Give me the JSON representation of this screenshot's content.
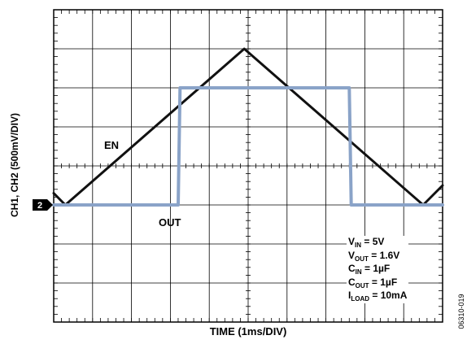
{
  "chart_data": {
    "type": "line",
    "title": "",
    "xlabel": "TIME (1ms/DIV)",
    "ylabel": "CH1, CH2 (500mV/DIV)",
    "figure_id": "06310-019",
    "x_divisions": 10,
    "y_divisions": 8,
    "x_unit": "ms",
    "x_per_div": 1,
    "y_per_div_mV": 500,
    "xlim": [
      0,
      10
    ],
    "ylim": [
      0,
      8
    ],
    "grid": true,
    "ground_marker": {
      "label": "2",
      "level_div": 3.0
    },
    "series": [
      {
        "name": "EN",
        "color": "#111111",
        "x": [
          0,
          0.3,
          4.9,
          9.5,
          10
        ],
        "y": [
          3.3,
          3.0,
          7.0,
          3.0,
          3.5
        ]
      },
      {
        "name": "OUT",
        "color": "#8aa3c8",
        "x": [
          0,
          3.2,
          3.25,
          7.6,
          7.65,
          10
        ],
        "y": [
          3.0,
          3.0,
          6.0,
          6.0,
          3.0,
          3.0
        ]
      }
    ],
    "annotations": {
      "en_label": "EN",
      "out_label": "OUT"
    },
    "conditions": [
      {
        "name": "V",
        "sub": "IN",
        "value": " = 5V"
      },
      {
        "name": "V",
        "sub": "OUT",
        "value": " = 1.6V"
      },
      {
        "name": "C",
        "sub": "IN",
        "value": " = 1µF"
      },
      {
        "name": "C",
        "sub": "OUT",
        "value": " = 1µF"
      },
      {
        "name": "I",
        "sub": "LOAD",
        "value": " = 10mA"
      }
    ]
  }
}
